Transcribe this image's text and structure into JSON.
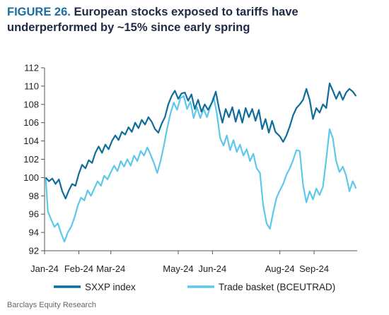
{
  "title_prefix": "FIGURE 26.",
  "title_text": "European stocks exposed to tariffs have  underperformed by ~15% since early spring",
  "source": "Barclays Equity Research",
  "colors": {
    "sxxp": "#0f6d9b",
    "trade": "#5fc8ea",
    "axis": "#555555"
  },
  "chart_data": {
    "type": "line",
    "title": "European stocks exposed to tariffs have  underperformed by ~15% since early spring",
    "xlabel": "",
    "ylabel": "",
    "ylim": [
      92,
      112
    ],
    "yticks": [
      92,
      94,
      96,
      98,
      100,
      102,
      104,
      106,
      108,
      110,
      112
    ],
    "x_range": [
      "2024-01-01",
      "2024-10-10"
    ],
    "xticks": [
      {
        "label": "Jan-24",
        "date": "2024-01-01"
      },
      {
        "label": "Feb-24",
        "date": "2024-02-01"
      },
      {
        "label": "Mar-24",
        "date": "2024-03-01"
      },
      {
        "label": "May-24",
        "date": "2024-05-01"
      },
      {
        "label": "Jun-24",
        "date": "2024-06-01"
      },
      {
        "label": "Aug-24",
        "date": "2024-08-01"
      },
      {
        "label": "Sep-24",
        "date": "2024-09-01"
      }
    ],
    "legend": "bottom",
    "grid": false,
    "series": [
      {
        "name": "SXXP index",
        "points": [
          [
            "2024-01-02",
            100
          ],
          [
            "2024-01-05",
            99.6
          ],
          [
            "2024-01-08",
            99.9
          ],
          [
            "2024-01-11",
            99.3
          ],
          [
            "2024-01-14",
            99.8
          ],
          [
            "2024-01-17",
            98.5
          ],
          [
            "2024-01-20",
            97.7
          ],
          [
            "2024-01-23",
            98.6
          ],
          [
            "2024-01-26",
            99.3
          ],
          [
            "2024-01-29",
            99.1
          ],
          [
            "2024-02-01",
            100.4
          ],
          [
            "2024-02-04",
            101.4
          ],
          [
            "2024-02-07",
            101.0
          ],
          [
            "2024-02-10",
            101.9
          ],
          [
            "2024-02-13",
            101.6
          ],
          [
            "2024-02-16",
            102.7
          ],
          [
            "2024-02-19",
            103.4
          ],
          [
            "2024-02-22",
            102.7
          ],
          [
            "2024-02-25",
            103.6
          ],
          [
            "2024-02-28",
            103.1
          ],
          [
            "2024-03-02",
            104.0
          ],
          [
            "2024-03-05",
            104.6
          ],
          [
            "2024-03-08",
            104.1
          ],
          [
            "2024-03-11",
            105.0
          ],
          [
            "2024-03-14",
            104.7
          ],
          [
            "2024-03-17",
            105.5
          ],
          [
            "2024-03-20",
            105.0
          ],
          [
            "2024-03-23",
            106.0
          ],
          [
            "2024-03-26",
            105.4
          ],
          [
            "2024-03-29",
            106.3
          ],
          [
            "2024-04-01",
            105.8
          ],
          [
            "2024-04-04",
            106.6
          ],
          [
            "2024-04-07",
            106.1
          ],
          [
            "2024-04-10",
            105.3
          ],
          [
            "2024-04-13",
            104.9
          ],
          [
            "2024-04-16",
            105.9
          ],
          [
            "2024-04-19",
            106.6
          ],
          [
            "2024-04-22",
            108.0
          ],
          [
            "2024-04-25",
            108.9
          ],
          [
            "2024-04-28",
            109.5
          ],
          [
            "2024-05-01",
            108.6
          ],
          [
            "2024-05-04",
            109.2
          ],
          [
            "2024-05-07",
            109.3
          ],
          [
            "2024-05-10",
            108.4
          ],
          [
            "2024-05-13",
            109.1
          ],
          [
            "2024-05-16",
            107.5
          ],
          [
            "2024-05-19",
            108.5
          ],
          [
            "2024-05-22",
            107.2
          ],
          [
            "2024-05-25",
            108.0
          ],
          [
            "2024-05-28",
            107.4
          ],
          [
            "2024-06-01",
            108.3
          ],
          [
            "2024-06-04",
            109.4
          ],
          [
            "2024-06-07",
            107.5
          ],
          [
            "2024-06-10",
            106.0
          ],
          [
            "2024-06-13",
            107.5
          ],
          [
            "2024-06-16",
            106.6
          ],
          [
            "2024-06-19",
            107.7
          ],
          [
            "2024-06-22",
            106.1
          ],
          [
            "2024-06-25",
            107.4
          ],
          [
            "2024-06-28",
            106.0
          ],
          [
            "2024-07-01",
            107.6
          ],
          [
            "2024-07-04",
            106.6
          ],
          [
            "2024-07-07",
            107.5
          ],
          [
            "2024-07-10",
            106.2
          ],
          [
            "2024-07-13",
            107.4
          ],
          [
            "2024-07-16",
            105.3
          ],
          [
            "2024-07-19",
            106.4
          ],
          [
            "2024-07-22",
            104.9
          ],
          [
            "2024-07-25",
            106.2
          ],
          [
            "2024-07-28",
            105.0
          ],
          [
            "2024-08-01",
            104.5
          ],
          [
            "2024-08-04",
            103.9
          ],
          [
            "2024-08-07",
            104.6
          ],
          [
            "2024-08-10",
            105.6
          ],
          [
            "2024-08-13",
            106.8
          ],
          [
            "2024-08-16",
            107.6
          ],
          [
            "2024-08-19",
            108.0
          ],
          [
            "2024-08-22",
            108.5
          ],
          [
            "2024-08-25",
            109.7
          ],
          [
            "2024-08-28",
            108.5
          ],
          [
            "2024-08-31",
            106.4
          ],
          [
            "2024-09-03",
            107.6
          ],
          [
            "2024-09-06",
            107.1
          ],
          [
            "2024-09-09",
            108.0
          ],
          [
            "2024-09-12",
            107.6
          ],
          [
            "2024-09-15",
            110.3
          ],
          [
            "2024-09-18",
            109.5
          ],
          [
            "2024-09-21",
            108.6
          ],
          [
            "2024-09-24",
            109.4
          ],
          [
            "2024-09-27",
            108.5
          ],
          [
            "2024-09-30",
            109.3
          ],
          [
            "2024-10-03",
            109.7
          ],
          [
            "2024-10-06",
            109.4
          ],
          [
            "2024-10-09",
            108.9
          ]
        ]
      },
      {
        "name": "Trade basket (BCEUTRAD)",
        "points": [
          [
            "2024-01-02",
            100
          ],
          [
            "2024-01-04",
            96.3
          ],
          [
            "2024-01-07",
            95.4
          ],
          [
            "2024-01-10",
            94.6
          ],
          [
            "2024-01-13",
            95.0
          ],
          [
            "2024-01-16",
            93.9
          ],
          [
            "2024-01-19",
            93.0
          ],
          [
            "2024-01-22",
            94.0
          ],
          [
            "2024-01-25",
            94.6
          ],
          [
            "2024-01-28",
            95.6
          ],
          [
            "2024-01-31",
            96.9
          ],
          [
            "2024-02-03",
            97.8
          ],
          [
            "2024-02-06",
            97.5
          ],
          [
            "2024-02-09",
            98.6
          ],
          [
            "2024-02-12",
            98.0
          ],
          [
            "2024-02-15",
            98.8
          ],
          [
            "2024-02-18",
            99.6
          ],
          [
            "2024-02-21",
            99.1
          ],
          [
            "2024-02-24",
            100.2
          ],
          [
            "2024-02-27",
            99.8
          ],
          [
            "2024-03-01",
            100.6
          ],
          [
            "2024-03-04",
            101.3
          ],
          [
            "2024-03-07",
            100.7
          ],
          [
            "2024-03-10",
            101.8
          ],
          [
            "2024-03-13",
            101.2
          ],
          [
            "2024-03-16",
            102.0
          ],
          [
            "2024-03-19",
            101.3
          ],
          [
            "2024-03-22",
            102.4
          ],
          [
            "2024-03-25",
            101.8
          ],
          [
            "2024-03-28",
            102.9
          ],
          [
            "2024-03-31",
            102.4
          ],
          [
            "2024-04-03",
            103.3
          ],
          [
            "2024-04-06",
            102.5
          ],
          [
            "2024-04-09",
            101.6
          ],
          [
            "2024-04-12",
            100.5
          ],
          [
            "2024-04-15",
            101.8
          ],
          [
            "2024-04-18",
            103.5
          ],
          [
            "2024-04-21",
            105.4
          ],
          [
            "2024-04-24",
            107.0
          ],
          [
            "2024-04-27",
            108.2
          ],
          [
            "2024-04-30",
            107.4
          ],
          [
            "2024-05-03",
            108.7
          ],
          [
            "2024-05-06",
            108.9
          ],
          [
            "2024-05-09",
            107.5
          ],
          [
            "2024-05-12",
            108.3
          ],
          [
            "2024-05-15",
            106.5
          ],
          [
            "2024-05-18",
            107.7
          ],
          [
            "2024-05-21",
            106.5
          ],
          [
            "2024-05-24",
            107.5
          ],
          [
            "2024-05-27",
            106.6
          ],
          [
            "2024-05-30",
            107.7
          ],
          [
            "2024-06-02",
            108.8
          ],
          [
            "2024-06-05",
            107.0
          ],
          [
            "2024-06-08",
            104.3
          ],
          [
            "2024-06-11",
            103.5
          ],
          [
            "2024-06-14",
            104.6
          ],
          [
            "2024-06-17",
            103.0
          ],
          [
            "2024-06-20",
            104.1
          ],
          [
            "2024-06-23",
            102.8
          ],
          [
            "2024-06-26",
            103.6
          ],
          [
            "2024-06-29",
            102.4
          ],
          [
            "2024-07-02",
            103.1
          ],
          [
            "2024-07-05",
            101.8
          ],
          [
            "2024-07-08",
            102.6
          ],
          [
            "2024-07-11",
            101.0
          ],
          [
            "2024-07-14",
            100.5
          ],
          [
            "2024-07-17",
            96.9
          ],
          [
            "2024-07-20",
            95.0
          ],
          [
            "2024-07-23",
            94.4
          ],
          [
            "2024-07-26",
            96.2
          ],
          [
            "2024-07-29",
            97.8
          ],
          [
            "2024-08-01",
            98.6
          ],
          [
            "2024-08-04",
            99.3
          ],
          [
            "2024-08-07",
            100.3
          ],
          [
            "2024-08-10",
            101.0
          ],
          [
            "2024-08-13",
            101.9
          ],
          [
            "2024-08-16",
            103.0
          ],
          [
            "2024-08-19",
            102.9
          ],
          [
            "2024-08-22",
            99.2
          ],
          [
            "2024-08-25",
            97.3
          ],
          [
            "2024-08-28",
            98.5
          ],
          [
            "2024-08-31",
            97.6
          ],
          [
            "2024-09-03",
            98.8
          ],
          [
            "2024-09-06",
            98.1
          ],
          [
            "2024-09-09",
            99.0
          ],
          [
            "2024-09-12",
            102.0
          ],
          [
            "2024-09-15",
            105.3
          ],
          [
            "2024-09-18",
            104.3
          ],
          [
            "2024-09-21",
            101.8
          ],
          [
            "2024-09-24",
            100.6
          ],
          [
            "2024-09-27",
            101.2
          ],
          [
            "2024-09-30",
            100.2
          ],
          [
            "2024-10-03",
            98.5
          ],
          [
            "2024-10-06",
            99.6
          ],
          [
            "2024-10-09",
            98.8
          ]
        ]
      }
    ]
  }
}
